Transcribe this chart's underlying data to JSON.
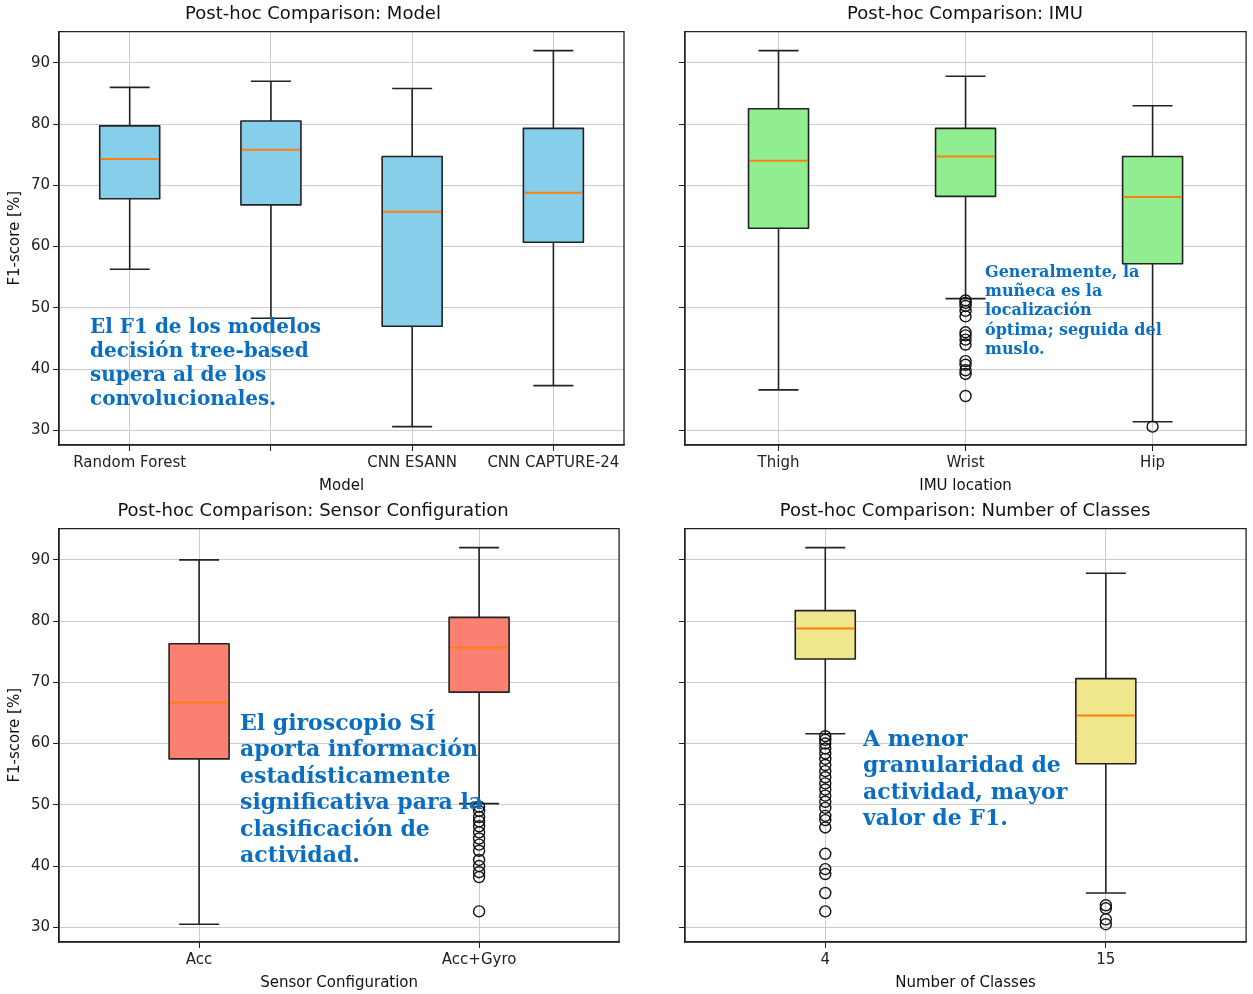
{
  "chart_data": [
    {
      "type": "box",
      "title": "Post-hoc Comparison: Model",
      "xlabel": "Model",
      "ylabel": "F1-score [%]",
      "categories": [
        "Random Forest",
        null,
        "CNN ESANN",
        "CNN CAPTURE-24"
      ],
      "ylim": [
        27.6,
        95.1
      ],
      "yticks": [
        30,
        40,
        50,
        60,
        70,
        80,
        90
      ],
      "grid": true,
      "series": [
        {
          "color": "#87ceeb",
          "boxes": [
            {
              "low": 56.3,
              "q1": 67.8,
              "median": 74.3,
              "q3": 79.7,
              "high": 86
            },
            {
              "low": 48.3,
              "q1": 66.8,
              "median": 75.8,
              "q3": 80.5,
              "high": 87
            },
            {
              "low": 30.6,
              "q1": 47,
              "median": 65.7,
              "q3": 74.7,
              "high": 85.8
            },
            {
              "low": 37.3,
              "q1": 60.7,
              "median": 68.8,
              "q3": 79.3,
              "high": 92
            }
          ]
        }
      ],
      "annotations": [
        "El F1 de los modelos decisión tree-based supera al de los convolucionales."
      ]
    },
    {
      "type": "box",
      "title": "Post-hoc Comparison: IMU",
      "xlabel": "IMU location",
      "categories": [
        "Thigh",
        "Wrist",
        "Hip"
      ],
      "ylim": [
        27.6,
        95.1
      ],
      "yticks": [
        30,
        40,
        50,
        60,
        70,
        80,
        90
      ],
      "grid": true,
      "tick_labels": "x",
      "series": [
        {
          "color": "#90ee90",
          "boxes": [
            {
              "low": 36.6,
              "q1": 63,
              "median": 74,
              "q3": 82.5,
              "high": 92
            },
            {
              "low": 51.5,
              "q1": 68.2,
              "median": 74.7,
              "q3": 79.3,
              "high": 87.8,
              "outliers": [
                51.2,
                50.8,
                50.3,
                49.5,
                48.6,
                46,
                45.5,
                44.8,
                44,
                41.3,
                40.7,
                39.8,
                39.2,
                35.6
              ]
            },
            {
              "low": 31.4,
              "q1": 57.2,
              "median": 68.1,
              "q3": 74.7,
              "high": 83,
              "outliers": [
                30.6
              ]
            }
          ]
        }
      ],
      "annotations": [
        "Generalmente, la muñeca es la localización óptima; seguida del muslo."
      ]
    },
    {
      "type": "box",
      "title": "Post-hoc Comparison: Sensor Configuration",
      "xlabel": "Sensor Configuration",
      "ylabel": "F1-score [%]",
      "categories": [
        "Acc",
        "Acc+Gyro"
      ],
      "ylim": [
        27.6,
        95.1
      ],
      "yticks": [
        30,
        40,
        50,
        60,
        70,
        80,
        90
      ],
      "grid": true,
      "series": [
        {
          "color": "#fa8072",
          "boxes": [
            {
              "low": 30.5,
              "q1": 57.5,
              "median": 66.7,
              "q3": 76.3,
              "high": 90
            },
            {
              "low": 50.2,
              "q1": 68.4,
              "median": 75.7,
              "q3": 80.6,
              "high": 92,
              "outliers": [
                49.7,
                49,
                48,
                47.3,
                46.5,
                45.5,
                44.5,
                43.5,
                42.5,
                41,
                40,
                39,
                38.2,
                32.6
              ]
            }
          ]
        }
      ],
      "annotations": [
        "El giroscopio SÍ aporta información estadísticamente significativa para la clasificación de actividad."
      ]
    },
    {
      "type": "box",
      "title": "Post-hoc Comparison: Number of Classes",
      "xlabel": "Number of Classes",
      "categories": [
        "4",
        "15"
      ],
      "ylim": [
        27.6,
        95.1
      ],
      "yticks": [
        30,
        40,
        50,
        60,
        70,
        80,
        90
      ],
      "grid": true,
      "tick_labels": "x",
      "series": [
        {
          "color": "#f0e68c",
          "boxes": [
            {
              "low": 61.6,
              "q1": 73.8,
              "median": 78.8,
              "q3": 81.7,
              "high": 92,
              "outliers": [
                61.2,
                60.6,
                60,
                59.2,
                58.4,
                57.5,
                56.5,
                55.5,
                54.5,
                53.5,
                52.5,
                51.5,
                50.5,
                49.5,
                48.2,
                47.5,
                46.3,
                42,
                39.5,
                38.7,
                35.6,
                32.6
              ]
            },
            {
              "low": 35.6,
              "q1": 56.7,
              "median": 64.6,
              "q3": 70.6,
              "high": 87.8,
              "outliers": [
                33.6,
                33.1,
                31.3,
                30.5
              ]
            }
          ]
        }
      ],
      "annotations": [
        "A menor granularidad de actividad, mayor valor de F1."
      ]
    }
  ]
}
